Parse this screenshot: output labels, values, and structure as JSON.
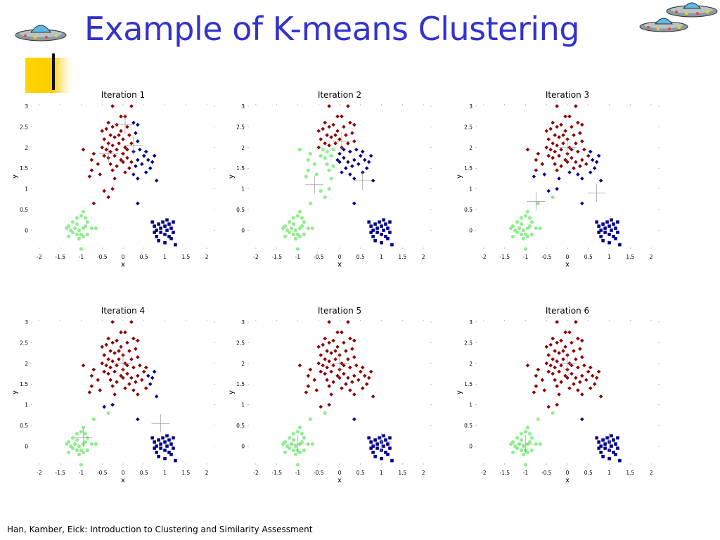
{
  "slide": {
    "title": "Example of K-means Clustering",
    "footer": "Han, Kamber, Eick: Introduction to Clustering and Similarity Assessment"
  },
  "icons": [
    "ufo-icon",
    "ufo-icon",
    "ufo-icon"
  ],
  "colors": {
    "title": "#3333cc",
    "cluster_red": "#8b0000",
    "cluster_blue": "#00008b",
    "cluster_green": "#90ee90"
  },
  "chart_data": [
    {
      "type": "scatter",
      "title": "Iteration 1",
      "xlabel": "x",
      "ylabel": "y",
      "xlim": [
        -2.2,
        2.2
      ],
      "ylim": [
        -0.45,
        3.05
      ],
      "xticks": [
        "-2",
        "-1.5",
        "-1",
        "-0.5",
        "0",
        "0.5",
        "1",
        "1.5",
        "2"
      ],
      "yticks": [
        "0",
        "0.5",
        "1",
        "1.5",
        "2",
        "2.5",
        "3"
      ],
      "red_cutoff": 0.0,
      "red_xmax": 0.25,
      "green_ymin": 0.9,
      "green_xmax": -0.02,
      "blue_top": true,
      "centroids": [
        [
          -0.35,
          1.85
        ],
        [
          0.05,
          2.55
        ],
        [
          0.25,
          2.05
        ]
      ]
    },
    {
      "type": "scatter",
      "title": "Iteration 2",
      "xlabel": "x",
      "ylabel": "y",
      "xlim": [
        -2.2,
        2.2
      ],
      "ylim": [
        -0.45,
        3.05
      ],
      "xticks": [
        "-2",
        "-1.5",
        "-1",
        "-0.5",
        "0",
        "0.5",
        "1",
        "1.5",
        "2"
      ],
      "yticks": [
        "0",
        "0.5",
        "1",
        "1.5",
        "2",
        "2.5",
        "3"
      ],
      "red_cutoff": 1.95,
      "red_xmax": 10,
      "green_ymin": 0.9,
      "green_xmax": -0.1,
      "blue_top": true,
      "centroids": [
        [
          -0.6,
          1.1
        ],
        [
          0.05,
          2.15
        ],
        [
          0.55,
          1.2
        ]
      ]
    },
    {
      "type": "scatter",
      "title": "Iteration 3",
      "xlabel": "x",
      "ylabel": "y",
      "xlim": [
        -2.2,
        2.2
      ],
      "ylim": [
        -0.45,
        3.05
      ],
      "xticks": [
        "-2",
        "-1.5",
        "-1",
        "-0.5",
        "0",
        "0.5",
        "1",
        "1.5",
        "2"
      ],
      "yticks": [
        "0",
        "0.5",
        "1",
        "1.5",
        "2",
        "2.5",
        "3"
      ],
      "red_cutoff": 1.4,
      "red_xmax": 0.55,
      "green_ymin": 1.4,
      "green_xmax": -0.7,
      "blue_top": true,
      "centroids": [
        [
          -0.75,
          0.7
        ],
        [
          0.0,
          2.0
        ],
        [
          0.7,
          0.9
        ]
      ]
    },
    {
      "type": "scatter",
      "title": "Iteration 4",
      "xlabel": "x",
      "ylabel": "y",
      "xlim": [
        -2.2,
        2.2
      ],
      "ylim": [
        -0.45,
        3.05
      ],
      "xticks": [
        "-2",
        "-1.5",
        "-1",
        "-0.5",
        "0",
        "0.5",
        "1",
        "1.5",
        "2"
      ],
      "yticks": [
        "0",
        "0.5",
        "1",
        "1.5",
        "2",
        "2.5",
        "3"
      ],
      "red_cutoff": 1.0,
      "red_xmax": 0.6,
      "green_ymin": 9,
      "green_xmax": -9,
      "blue_top": true,
      "centroids": [
        [
          -0.95,
          0.2
        ],
        [
          0.0,
          2.0
        ],
        [
          0.9,
          0.55
        ]
      ]
    },
    {
      "type": "scatter",
      "title": "Iteration 5",
      "xlabel": "x",
      "ylabel": "y",
      "xlim": [
        -2.2,
        2.2
      ],
      "ylim": [
        -0.45,
        3.05
      ],
      "xticks": [
        "-2",
        "-1.5",
        "-1",
        "-0.5",
        "0",
        "0.5",
        "1",
        "1.5",
        "2"
      ],
      "yticks": [
        "0",
        "0.5",
        "1",
        "1.5",
        "2",
        "2.5",
        "3"
      ],
      "red_cutoff": 0.9,
      "red_xmax": 10,
      "green_ymin": 9,
      "green_xmax": -9,
      "blue_top": false,
      "centroids": [
        [
          -1.0,
          0.05
        ],
        [
          0.0,
          2.0
        ],
        [
          1.0,
          0.1
        ]
      ]
    },
    {
      "type": "scatter",
      "title": "Iteration 6",
      "xlabel": "x",
      "ylabel": "y",
      "xlim": [
        -2.2,
        2.2
      ],
      "ylim": [
        -0.45,
        3.05
      ],
      "xticks": [
        "-2",
        "-1.5",
        "-1",
        "-0.5",
        "0",
        "0.5",
        "1",
        "1.5",
        "2"
      ],
      "yticks": [
        "0",
        "0.5",
        "1",
        "1.5",
        "2",
        "2.5",
        "3"
      ],
      "red_cutoff": 0.9,
      "red_xmax": 10,
      "green_ymin": 9,
      "green_xmax": -9,
      "blue_top": false,
      "centroids": [
        [
          -1.0,
          0.05
        ],
        [
          0.0,
          2.0
        ],
        [
          1.0,
          0.1
        ]
      ]
    }
  ],
  "points": {
    "top": [
      [
        -0.25,
        3.0
      ],
      [
        0.2,
        3.0
      ],
      [
        -0.05,
        2.75
      ],
      [
        0.05,
        2.75
      ],
      [
        -0.35,
        2.6
      ],
      [
        -0.25,
        2.5
      ],
      [
        -0.15,
        2.55
      ],
      [
        -0.05,
        2.4
      ],
      [
        0.1,
        2.5
      ],
      [
        0.25,
        2.6
      ],
      [
        0.35,
        2.55
      ],
      [
        -0.5,
        2.4
      ],
      [
        -0.4,
        2.45
      ],
      [
        -0.3,
        2.3
      ],
      [
        -0.2,
        2.25
      ],
      [
        -0.1,
        2.3
      ],
      [
        0.0,
        2.2
      ],
      [
        0.15,
        2.3
      ],
      [
        0.3,
        2.35
      ],
      [
        -0.45,
        2.2
      ],
      [
        -0.35,
        2.1
      ],
      [
        -0.25,
        2.05
      ],
      [
        -0.1,
        2.1
      ],
      [
        0.05,
        2.0
      ],
      [
        0.2,
        2.1
      ],
      [
        0.35,
        2.15
      ],
      [
        -0.5,
        2.0
      ],
      [
        -0.4,
        1.95
      ],
      [
        -0.3,
        1.9
      ],
      [
        -0.15,
        1.95
      ],
      [
        0.0,
        1.85
      ],
      [
        0.1,
        1.95
      ],
      [
        0.25,
        1.9
      ],
      [
        0.4,
        1.95
      ],
      [
        0.55,
        1.9
      ],
      [
        -0.45,
        1.8
      ],
      [
        -0.35,
        1.75
      ],
      [
        -0.2,
        1.8
      ],
      [
        -0.05,
        1.7
      ],
      [
        0.1,
        1.75
      ],
      [
        0.2,
        1.65
      ],
      [
        0.35,
        1.7
      ],
      [
        0.5,
        1.8
      ],
      [
        0.6,
        1.7
      ],
      [
        -0.3,
        1.6
      ],
      [
        -0.15,
        1.55
      ],
      [
        0.0,
        1.65
      ],
      [
        0.15,
        1.5
      ],
      [
        0.3,
        1.55
      ],
      [
        0.45,
        1.6
      ],
      [
        0.7,
        1.65
      ],
      [
        0.75,
        1.8
      ],
      [
        0.65,
        1.5
      ],
      [
        -0.25,
        1.45
      ],
      [
        0.05,
        1.4
      ],
      [
        0.25,
        1.35
      ],
      [
        0.55,
        1.4
      ],
      [
        -0.2,
        1.25
      ],
      [
        0.35,
        1.25
      ],
      [
        0.8,
        1.2
      ],
      [
        -0.95,
        1.95
      ],
      [
        -0.7,
        1.85
      ],
      [
        -0.6,
        1.6
      ],
      [
        -0.75,
        1.7
      ]
    ],
    "mid": [
      [
        -0.75,
        1.45
      ],
      [
        -0.8,
        1.3
      ],
      [
        -0.55,
        1.35
      ],
      [
        -0.25,
        1.0
      ],
      [
        -0.45,
        0.95
      ],
      [
        -0.7,
        0.65
      ],
      [
        0.35,
        0.65
      ],
      [
        -0.35,
        0.8
      ]
    ],
    "bl": [
      [
        -1.35,
        0.05
      ],
      [
        -1.3,
        0.1
      ],
      [
        -1.25,
        0.0
      ],
      [
        -1.2,
        -0.05
      ],
      [
        -1.15,
        0.05
      ],
      [
        -1.1,
        0.15
      ],
      [
        -1.05,
        0.0
      ],
      [
        -1.0,
        -0.1
      ],
      [
        -0.95,
        0.05
      ],
      [
        -0.9,
        0.1
      ],
      [
        -0.85,
        0.2
      ],
      [
        -1.2,
        0.2
      ],
      [
        -1.1,
        0.3
      ],
      [
        -1.0,
        0.35
      ],
      [
        -0.9,
        0.3
      ],
      [
        -1.05,
        -0.2
      ],
      [
        -0.95,
        -0.15
      ],
      [
        -0.85,
        -0.1
      ],
      [
        -0.75,
        0.05
      ],
      [
        -0.65,
        0.05
      ],
      [
        -1.3,
        -0.15
      ],
      [
        -1.0,
        -0.45
      ],
      [
        -0.95,
        0.45
      ],
      [
        -1.1,
        -0.1
      ]
    ],
    "br": [
      [
        0.7,
        0.2
      ],
      [
        0.75,
        0.1
      ],
      [
        0.8,
        0.0
      ],
      [
        0.85,
        0.15
      ],
      [
        0.9,
        0.05
      ],
      [
        0.95,
        0.2
      ],
      [
        1.0,
        0.1
      ],
      [
        1.05,
        0.0
      ],
      [
        1.1,
        0.15
      ],
      [
        1.15,
        0.05
      ],
      [
        1.2,
        0.2
      ],
      [
        0.8,
        -0.15
      ],
      [
        0.9,
        -0.05
      ],
      [
        1.0,
        -0.1
      ],
      [
        1.1,
        -0.15
      ],
      [
        1.2,
        -0.05
      ],
      [
        0.85,
        -0.25
      ],
      [
        1.0,
        -0.3
      ],
      [
        1.25,
        -0.35
      ],
      [
        1.05,
        0.25
      ],
      [
        0.75,
        -0.05
      ],
      [
        1.15,
        -0.2
      ]
    ]
  }
}
